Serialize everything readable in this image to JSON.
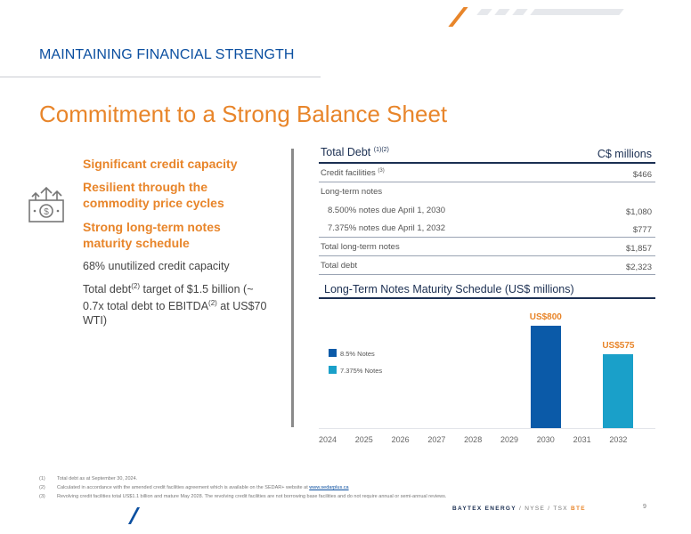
{
  "header": {
    "section_title": "MAINTAINING FINANCIAL STRENGTH",
    "main_title": "Commitment to a Strong Balance Sheet"
  },
  "left": {
    "icon": "money-growth-icon",
    "highlights": [
      "Significant credit capacity",
      "Resilient through the commodity price cycles",
      "Strong long-term notes maturity schedule"
    ],
    "point1": "68% unutilized credit capacity",
    "point2_a": "Total debt",
    "point2_sup1": "(2)",
    "point2_b": " target of $1.5 billion (~ 0.7x total debt to EBITDA",
    "point2_sup2": "(2)",
    "point2_c": " at US$70 WTI)"
  },
  "table": {
    "title": "Total Debt ",
    "title_sup": "(1)(2)",
    "units": "C$ millions",
    "rows": [
      {
        "label": "Credit facilities ",
        "sup": "(3)",
        "value": "$466"
      },
      {
        "label": "Long-term notes",
        "sup": "",
        "value": ""
      },
      {
        "label": "8.500% notes due April 1, 2030",
        "sup": "",
        "value": "$1,080"
      },
      {
        "label": "7.375% notes due April 1, 2032",
        "sup": "",
        "value": "$777"
      },
      {
        "label": "Total long-term notes",
        "sup": "",
        "value": "$1,857"
      },
      {
        "label": "Total debt",
        "sup": "",
        "value": "$2,323"
      }
    ]
  },
  "chart": {
    "title": "Long-Term Notes Maturity Schedule (US$ millions)"
  },
  "chart_data": {
    "type": "bar",
    "title": "Long-Term Notes Maturity Schedule (US$ millions)",
    "categories": [
      "2024",
      "2025",
      "2026",
      "2027",
      "2028",
      "2029",
      "2030",
      "2031",
      "2032"
    ],
    "series": [
      {
        "name": "8.5% Notes",
        "values": [
          0,
          0,
          0,
          0,
          0,
          0,
          800,
          0,
          0
        ],
        "color": "#0b5aa8"
      },
      {
        "name": "7.375% Notes",
        "values": [
          0,
          0,
          0,
          0,
          0,
          0,
          0,
          0,
          575
        ],
        "color": "#1aa0c9"
      }
    ],
    "data_labels": [
      {
        "category": "2030",
        "text": "US$800"
      },
      {
        "category": "2032",
        "text": "US$575"
      }
    ],
    "legend": "left",
    "grid": false
  },
  "footnotes": [
    {
      "num": "(1)",
      "text": "Total debt as at September 30, 2024."
    },
    {
      "num": "(2)",
      "text": "Calculated in accordance with the amended credit facilities agreement which is available on the SEDAR+ website at ",
      "link": "www.sedarplus.ca"
    },
    {
      "num": "(3)",
      "text": "Revolving credit facilities total US$1.1 billion and mature May 2028. The revolving credit facilities are not borrowing base facilities and do not require annual or semi-annual reviews."
    }
  ],
  "footer": {
    "brand": "BAYTEX ENERGY",
    "sep": " / ",
    "nyse": "NYSE",
    "tsx": "TSX",
    "ticker": "BTE",
    "page": "9"
  },
  "colors": {
    "orange": "#e8852a",
    "navy": "#1b2f52",
    "blue": "#0b4fa0",
    "notes_85": "#0b5aa8",
    "notes_7375": "#1aa0c9"
  }
}
